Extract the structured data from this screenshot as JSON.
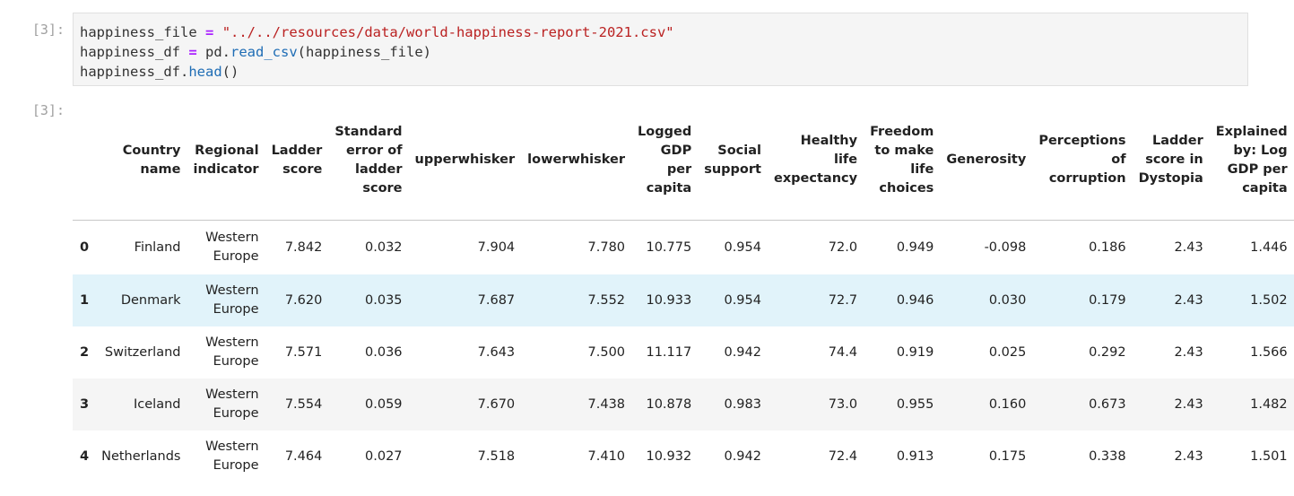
{
  "input_cell": {
    "prompt": "[3]:",
    "lines": [
      {
        "var": "happiness_file",
        "op": "=",
        "rest_str": "\"../../resources/data/world-happiness-report-2021.csv\""
      },
      {
        "var": "happiness_df",
        "op": "=",
        "obj": "pd.",
        "fn": "read_csv",
        "args": "(happiness_file)"
      },
      {
        "obj": "happiness_df.",
        "fn": "head",
        "args": "()"
      }
    ]
  },
  "output_cell": {
    "prompt": "[3]:"
  },
  "table": {
    "columns": [
      "",
      "Country name",
      "Regional indicator",
      "Ladder score",
      "Standard error of ladder score",
      "upperwhisker",
      "lowerwhisker",
      "Logged GDP per capita",
      "Social support",
      "Healthy life expectancy",
      "Freedom to make life choices",
      "Generosity",
      "Perceptions of corruption",
      "Ladder score in Dystopia",
      "Explained by: Log GDP per capita"
    ],
    "column_lines": [
      [
        ""
      ],
      [
        "Country",
        "name"
      ],
      [
        "Regional",
        "indicator"
      ],
      [
        "Ladder",
        "score"
      ],
      [
        "Standard",
        "error of",
        "ladder",
        "score"
      ],
      [
        "upperwhisker"
      ],
      [
        "lowerwhisker"
      ],
      [
        "Logged",
        "GDP",
        "per",
        "capita"
      ],
      [
        "Social",
        "support"
      ],
      [
        "Healthy",
        "life",
        "expectancy"
      ],
      [
        "Freedom",
        "to make",
        "life",
        "choices"
      ],
      [
        "Generosity"
      ],
      [
        "Perceptions",
        "of",
        "corruption"
      ],
      [
        "Ladder",
        "score in",
        "Dystopia"
      ],
      [
        "Explained",
        "by: Log",
        "GDP per",
        "capita"
      ]
    ],
    "rows": [
      {
        "index": "0",
        "country": "Finland",
        "region": [
          "Western",
          "Europe"
        ],
        "cells": [
          "7.842",
          "0.032",
          "7.904",
          "7.780",
          "10.775",
          "0.954",
          "72.0",
          "0.949",
          "-0.098",
          "0.186",
          "2.43",
          "1.446"
        ]
      },
      {
        "index": "1",
        "country": "Denmark",
        "region": [
          "Western",
          "Europe"
        ],
        "cells": [
          "7.620",
          "0.035",
          "7.687",
          "7.552",
          "10.933",
          "0.954",
          "72.7",
          "0.946",
          "0.030",
          "0.179",
          "2.43",
          "1.502"
        ]
      },
      {
        "index": "2",
        "country": "Switzerland",
        "region": [
          "Western",
          "Europe"
        ],
        "cells": [
          "7.571",
          "0.036",
          "7.643",
          "7.500",
          "11.117",
          "0.942",
          "74.4",
          "0.919",
          "0.025",
          "0.292",
          "2.43",
          "1.566"
        ]
      },
      {
        "index": "3",
        "country": "Iceland",
        "region": [
          "Western",
          "Europe"
        ],
        "cells": [
          "7.554",
          "0.059",
          "7.670",
          "7.438",
          "10.878",
          "0.983",
          "73.0",
          "0.955",
          "0.160",
          "0.673",
          "2.43",
          "1.482"
        ]
      },
      {
        "index": "4",
        "country": "Netherlands",
        "region": [
          "Western",
          "Europe"
        ],
        "cells": [
          "7.464",
          "0.027",
          "7.518",
          "7.410",
          "10.932",
          "0.942",
          "72.4",
          "0.913",
          "0.175",
          "0.338",
          "2.43",
          "1.501"
        ]
      }
    ],
    "hover_row": 1,
    "colors": {
      "stripe": "#f5f5f5",
      "hover": "#e1f3fa",
      "string": "#ba2121",
      "operator": "#aa22ff",
      "function": "#1f6db5"
    }
  }
}
